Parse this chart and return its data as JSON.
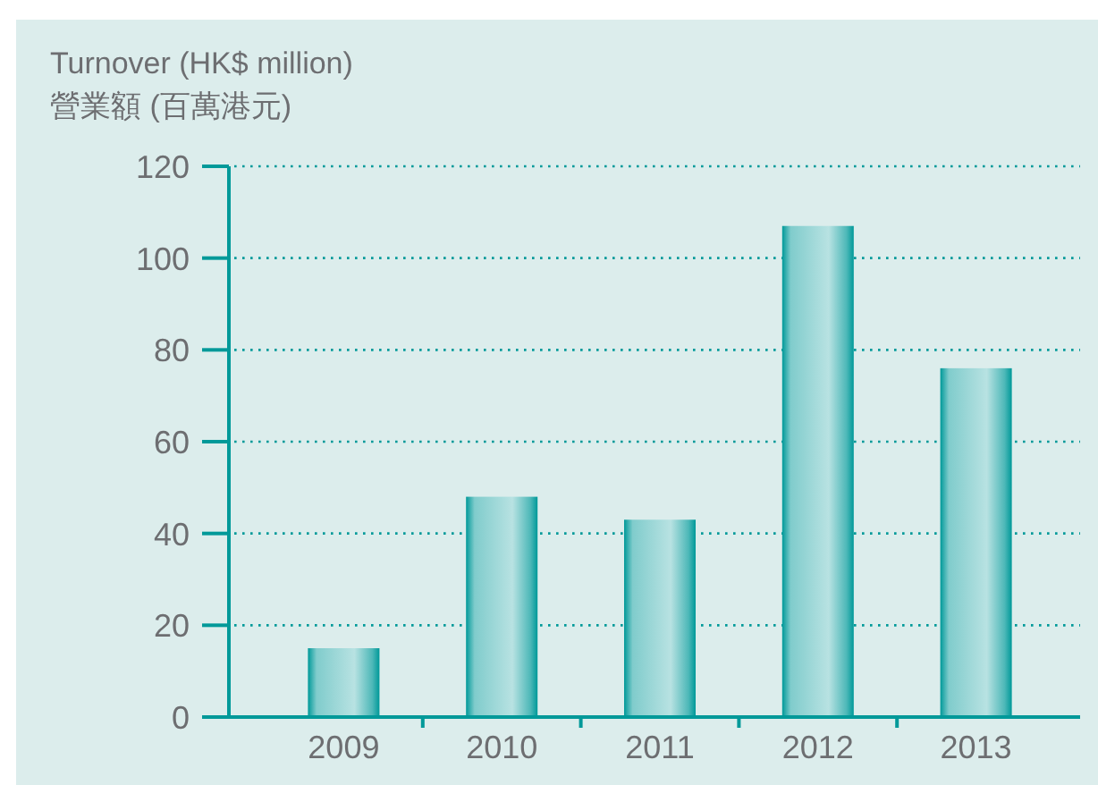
{
  "chart_data": {
    "type": "bar",
    "ylabel": "Turnover (HK$ million)\n營業額 (百萬港元)",
    "categories": [
      "2009",
      "2010",
      "2011",
      "2012",
      "2013"
    ],
    "values": [
      15,
      48,
      43,
      107,
      76
    ],
    "color": "#009999",
    "ylim": [
      0,
      120
    ],
    "yticks": [
      0,
      20,
      40,
      60,
      80,
      100,
      120
    ],
    "grid": "y"
  }
}
